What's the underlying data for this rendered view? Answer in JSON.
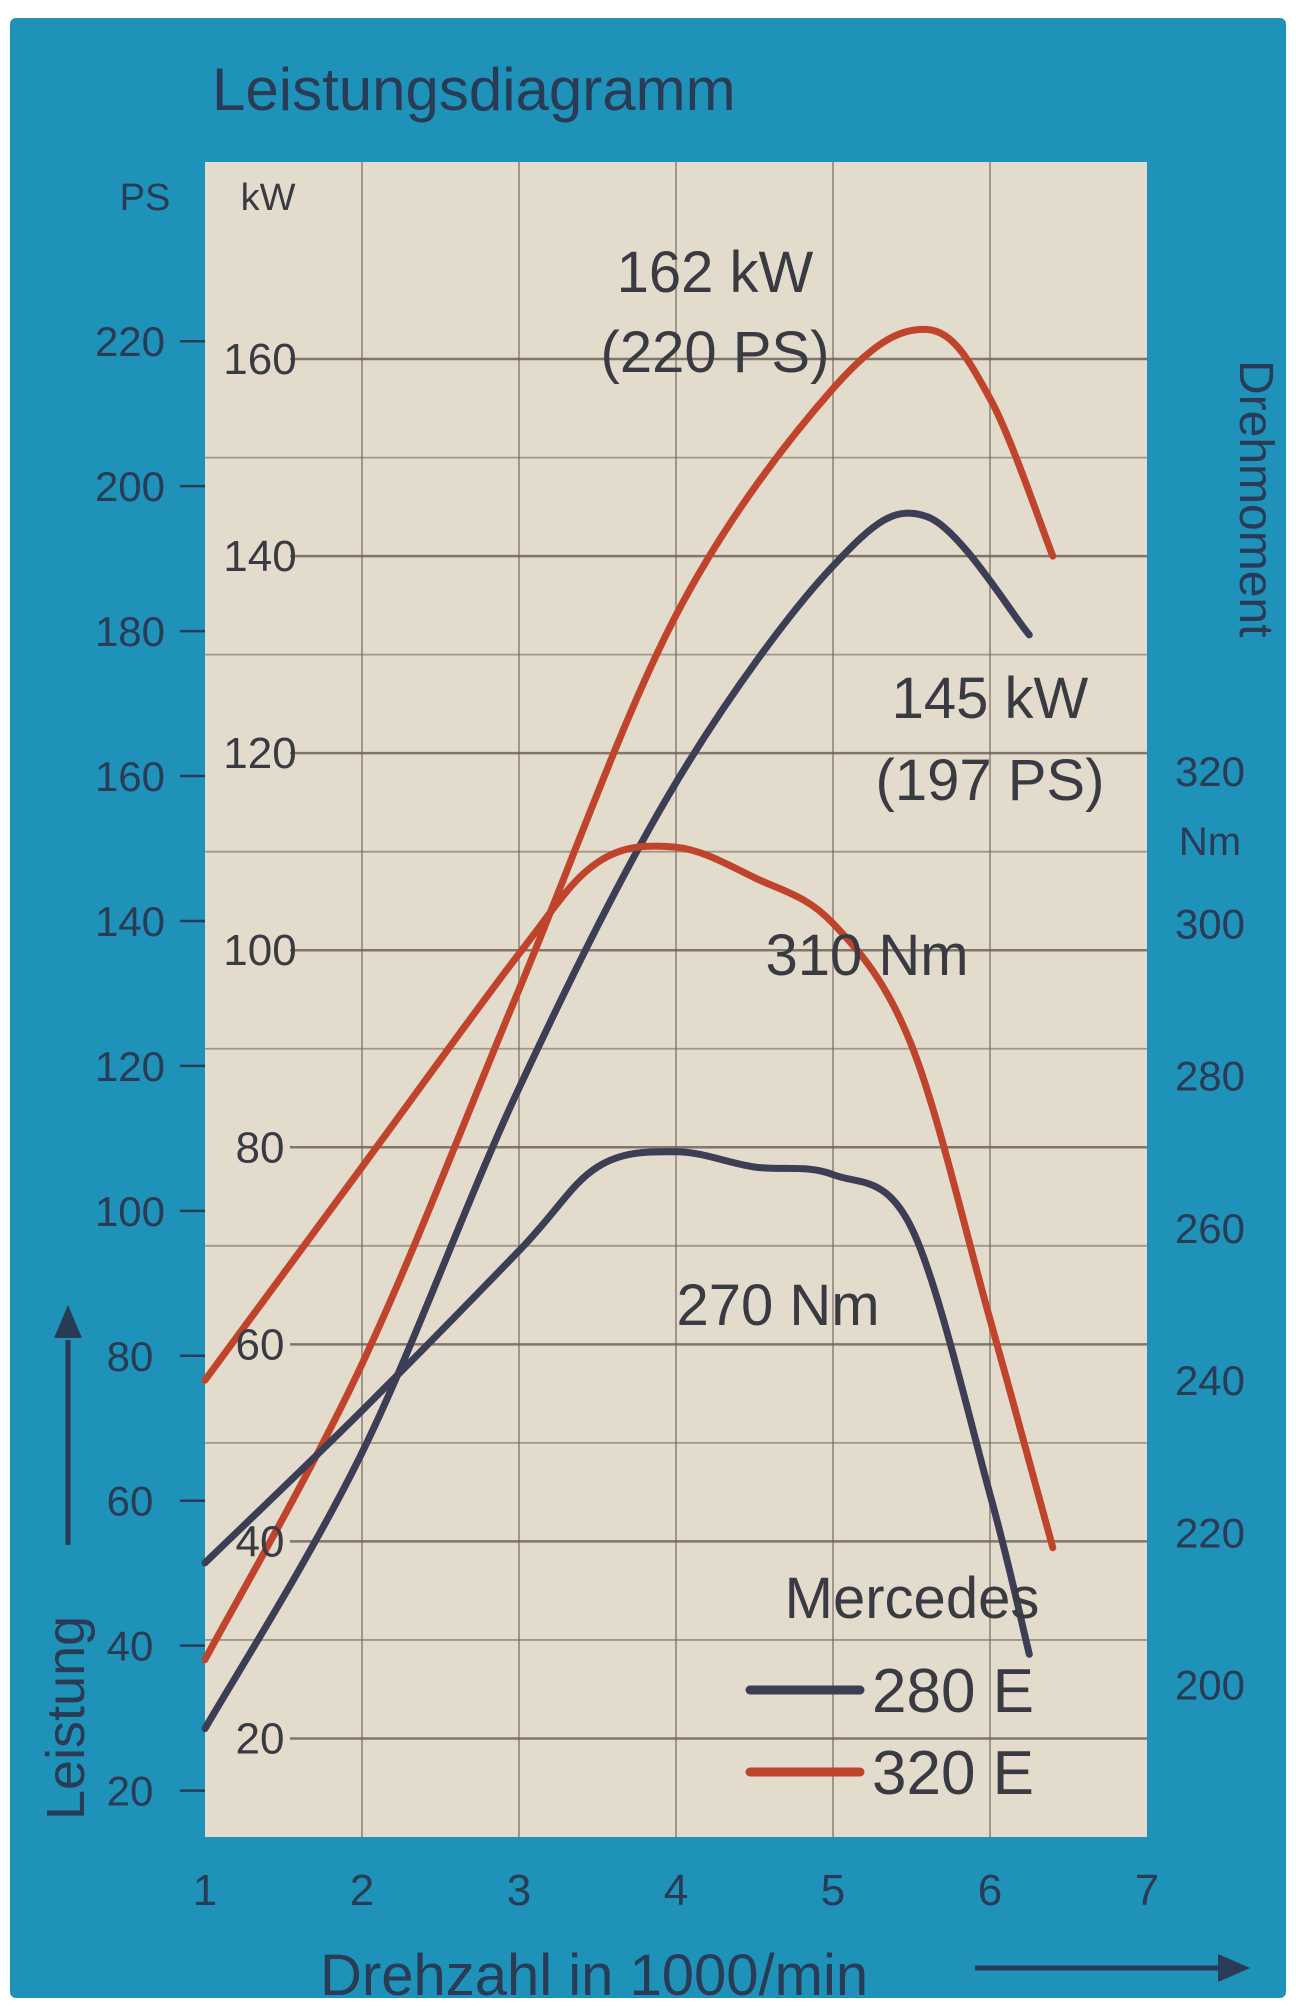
{
  "chart_data": {
    "type": "line",
    "title": "Leistungsdiagramm",
    "xlabel": "Drehzahl in 1000/min",
    "ylabel_left": "Leistung",
    "ylabel_right": "Drehmoment",
    "unit_ps": "PS",
    "unit_kw": "kW",
    "unit_nm": "Nm",
    "xlim": [
      1,
      7
    ],
    "ylim_kw": [
      10,
      180
    ],
    "ylim_nm": [
      180,
      400
    ],
    "x_ticks": [
      1,
      2,
      3,
      4,
      5,
      6,
      7
    ],
    "ps_ticks": [
      20,
      40,
      60,
      80,
      100,
      120,
      140,
      160,
      180,
      200,
      220
    ],
    "kw_ticks": [
      20,
      40,
      60,
      80,
      100,
      120,
      140,
      160
    ],
    "nm_ticks": [
      200,
      220,
      240,
      260,
      280,
      300,
      320
    ],
    "grid": true,
    "legend": {
      "title": "Mercedes",
      "position": "bottom-right",
      "entries": [
        {
          "name": "280 E",
          "color": "#3b3e54"
        },
        {
          "name": "320 E",
          "color": "#c0442c"
        }
      ]
    },
    "colors": {
      "frame": "#1e92b9",
      "plot_bg": "#e3dbcc",
      "grid": "#6a5e55",
      "text": "#3a3a42"
    },
    "series": [
      {
        "model": "320 E",
        "kind": "power",
        "unit": "kW",
        "color": "#c0442c",
        "x": [
          1.0,
          2.0,
          3.0,
          4.0,
          5.0,
          5.6,
          6.0,
          6.4
        ],
        "y": [
          28,
          58,
          96,
          134,
          157,
          163,
          156,
          140
        ]
      },
      {
        "model": "280 E",
        "kind": "power",
        "unit": "kW",
        "color": "#3b3e54",
        "x": [
          1.0,
          2.0,
          3.0,
          4.0,
          5.0,
          5.6,
          6.25
        ],
        "y": [
          21,
          49,
          86,
          117,
          139,
          144,
          132
        ]
      },
      {
        "model": "320 E",
        "kind": "torque",
        "unit": "Nm",
        "color": "#c0442c",
        "x": [
          1.0,
          2.0,
          3.0,
          3.5,
          4.0,
          4.5,
          5.0,
          5.5,
          6.0,
          6.4
        ],
        "y": [
          240,
          268,
          296,
          308,
          310,
          306,
          300,
          284,
          248,
          218
        ]
      },
      {
        "model": "280 E",
        "kind": "torque",
        "unit": "Nm",
        "color": "#3b3e54",
        "x": [
          1.0,
          2.0,
          3.0,
          3.5,
          4.0,
          4.5,
          5.0,
          5.5,
          6.0,
          6.25
        ],
        "y": [
          216,
          236,
          257,
          268,
          270,
          268,
          267,
          260,
          225,
          204
        ]
      }
    ],
    "annotations": [
      {
        "lines": [
          "162 kW",
          "(220 PS)"
        ]
      },
      {
        "lines": [
          "145 kW",
          "(197 PS)"
        ]
      },
      {
        "lines": [
          "310 Nm"
        ]
      },
      {
        "lines": [
          "270 Nm"
        ]
      }
    ]
  }
}
